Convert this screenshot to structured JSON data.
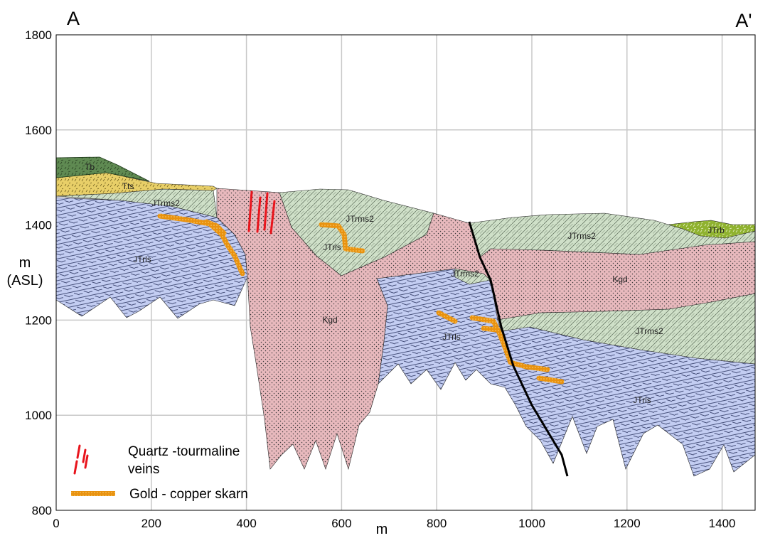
{
  "section": {
    "start_label": "A",
    "end_label": "A'",
    "y_axis_label_line1": "m",
    "y_axis_label_line2": "(ASL)",
    "x_axis_label": "m",
    "x_ticks": [
      "0",
      "200",
      "400",
      "600",
      "800",
      "1000",
      "1200",
      "1400"
    ],
    "y_ticks": [
      "800",
      "1000",
      "1200",
      "1400",
      "1600",
      "1800"
    ]
  },
  "units": {
    "tb": "Tb",
    "tts": "Tts",
    "jtrb": "JTrb",
    "jtrms2": "JTrms2",
    "jtrls": "JTrls",
    "kgd": "Kgd"
  },
  "legend": {
    "veins": {
      "line1": "Quartz -tourmaline",
      "line2": " veins",
      "color": "#e8141c"
    },
    "skarn": {
      "label": "Gold - copper skarn",
      "color": "#e9920f"
    }
  },
  "colors": {
    "tb": "#5f8a52",
    "tts": "#e8cf68",
    "jtrb": "#8fb22f",
    "jtrms2": "#cfe0c8",
    "jtrls": "#c3cdf2",
    "kgd": "#e8b9bd",
    "fault": "#000000",
    "grid": "#c8c8c8"
  }
}
